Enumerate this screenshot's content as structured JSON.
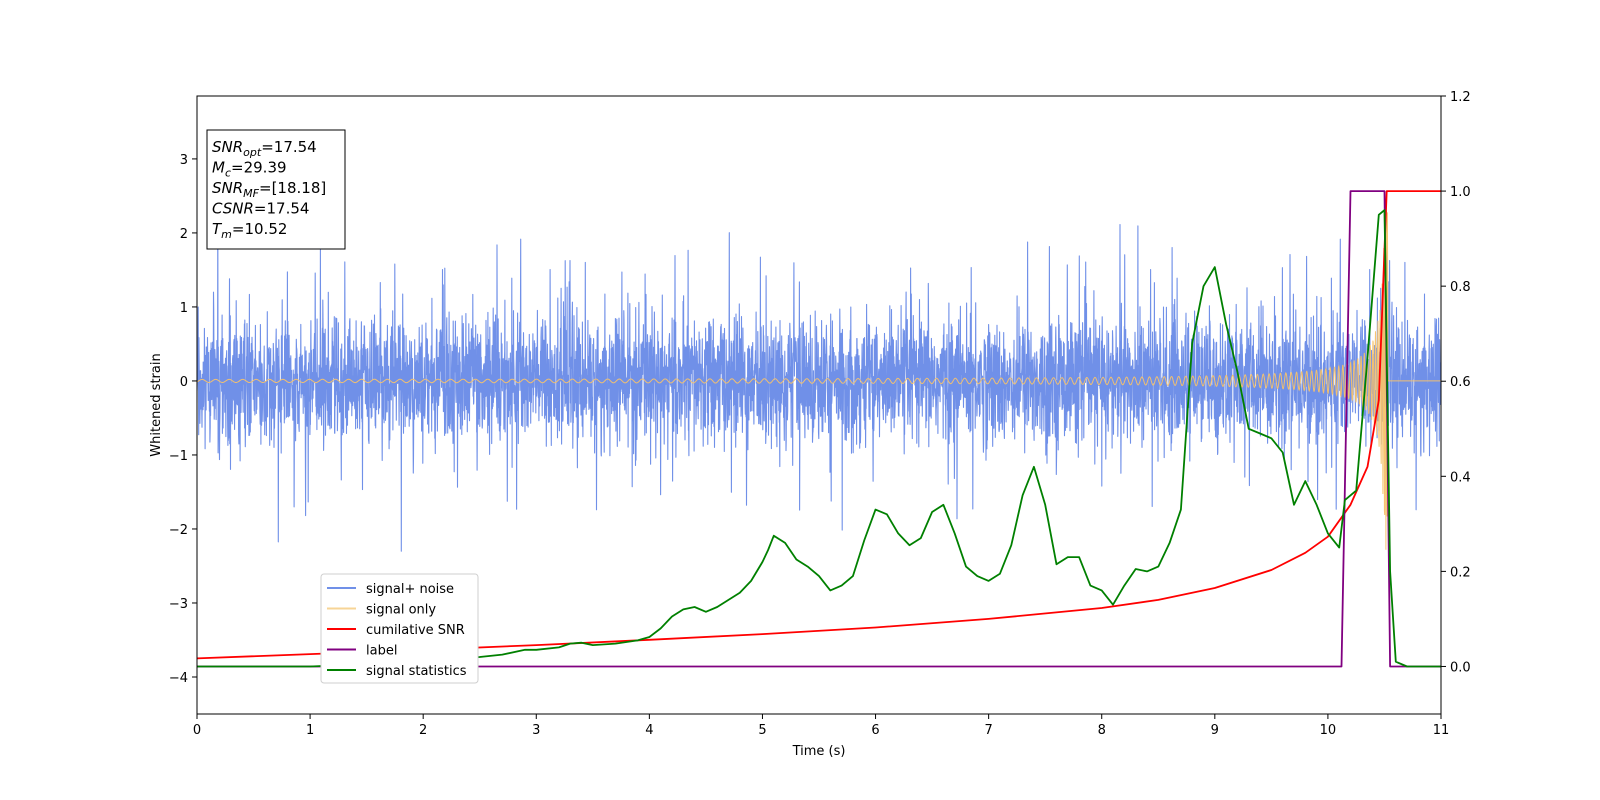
{
  "chart_data": {
    "type": "line",
    "title": "",
    "xlabel": "Time (s)",
    "ylabel_left": "Whitened strain",
    "ylabel_right": "",
    "xlim": [
      0,
      11
    ],
    "ylim_left": [
      -4.5,
      3.85
    ],
    "ylim_right": [
      -0.1,
      1.2
    ],
    "x_ticks": [
      "0",
      "1",
      "2",
      "3",
      "4",
      "5",
      "6",
      "7",
      "8",
      "9",
      "10",
      "11"
    ],
    "y_ticks_left": [
      "3",
      "2",
      "1",
      "0",
      "−1",
      "−2",
      "−3",
      "−4"
    ],
    "y_ticks_right": [
      "1.2",
      "1.0",
      "0.8",
      "0.6",
      "0.4",
      "0.2",
      "0.0"
    ],
    "grid": false,
    "legend_position": "lower-left",
    "annotation": [
      {
        "main": "SNR",
        "sub": "opt",
        "rest": "=17.54"
      },
      {
        "main": "M",
        "sub": "c",
        "rest": "=29.39"
      },
      {
        "main": "SNR",
        "sub": "MF",
        "rest": "=[18.18]"
      },
      {
        "main": "CSNR",
        "sub": "",
        "rest": "=17.54"
      },
      {
        "main": "T",
        "sub": "m",
        "rest": "=10.52"
      }
    ],
    "series": [
      {
        "name": "signal+ noise",
        "axis": "left",
        "color": "#7090e8",
        "description": "noise band ~±1.3 with spikes up to 2.4 and down to -2.3"
      },
      {
        "name": "signal only",
        "axis": "left",
        "color": "#f5c26b",
        "description": "chirp, amplitude growing toward 10.52 s"
      },
      {
        "name": "cumilative SNR",
        "axis": "right",
        "color": "#ff0000",
        "x": [
          0,
          1,
          2,
          3,
          4,
          5,
          6,
          7,
          8,
          8.5,
          9,
          9.5,
          9.8,
          10,
          10.2,
          10.35,
          10.45,
          10.52,
          10.53,
          11
        ],
        "y": [
          0.017,
          0.026,
          0.035,
          0.045,
          0.056,
          0.068,
          0.082,
          0.1,
          0.123,
          0.14,
          0.165,
          0.203,
          0.239,
          0.273,
          0.34,
          0.42,
          0.56,
          1.0,
          1.0,
          1.0
        ]
      },
      {
        "name": "label",
        "axis": "right",
        "color": "#800080",
        "x": [
          0,
          10.12,
          10.2,
          10.5,
          10.55,
          11
        ],
        "y": [
          0,
          0,
          1,
          1,
          0,
          0
        ]
      },
      {
        "name": "signal statistics",
        "axis": "right",
        "color": "#008000",
        "x": [
          0,
          0.5,
          1,
          1.5,
          2,
          2.5,
          2.7,
          2.9,
          3,
          3.2,
          3.3,
          3.4,
          3.5,
          3.7,
          3.9,
          4.0,
          4.1,
          4.2,
          4.3,
          4.4,
          4.5,
          4.6,
          4.7,
          4.8,
          4.9,
          5.0,
          5.05,
          5.1,
          5.2,
          5.3,
          5.4,
          5.5,
          5.6,
          5.7,
          5.8,
          5.9,
          6.0,
          6.1,
          6.2,
          6.3,
          6.4,
          6.5,
          6.6,
          6.7,
          6.8,
          6.9,
          7.0,
          7.1,
          7.2,
          7.3,
          7.4,
          7.5,
          7.6,
          7.7,
          7.8,
          7.9,
          8.0,
          8.1,
          8.2,
          8.3,
          8.4,
          8.5,
          8.6,
          8.7,
          8.8,
          8.9,
          9.0,
          9.1,
          9.2,
          9.3,
          9.4,
          9.5,
          9.6,
          9.7,
          9.8,
          9.9,
          10.0,
          10.1,
          10.15,
          10.25,
          10.35,
          10.45,
          10.5,
          10.55,
          10.6,
          10.7,
          11
        ],
        "y": [
          0.0,
          0.0,
          0.0,
          0.005,
          0.01,
          0.02,
          0.025,
          0.035,
          0.035,
          0.04,
          0.048,
          0.05,
          0.045,
          0.048,
          0.055,
          0.062,
          0.08,
          0.105,
          0.12,
          0.125,
          0.115,
          0.125,
          0.14,
          0.155,
          0.18,
          0.22,
          0.245,
          0.275,
          0.26,
          0.225,
          0.21,
          0.19,
          0.16,
          0.17,
          0.19,
          0.265,
          0.33,
          0.32,
          0.28,
          0.255,
          0.27,
          0.325,
          0.34,
          0.28,
          0.21,
          0.19,
          0.18,
          0.195,
          0.255,
          0.36,
          0.42,
          0.34,
          0.215,
          0.23,
          0.23,
          0.17,
          0.16,
          0.13,
          0.17,
          0.205,
          0.2,
          0.21,
          0.26,
          0.33,
          0.68,
          0.8,
          0.84,
          0.72,
          0.62,
          0.5,
          0.49,
          0.48,
          0.45,
          0.34,
          0.39,
          0.34,
          0.28,
          0.25,
          0.35,
          0.37,
          0.65,
          0.95,
          0.96,
          0.2,
          0.01,
          0.0,
          0.0
        ]
      }
    ]
  }
}
